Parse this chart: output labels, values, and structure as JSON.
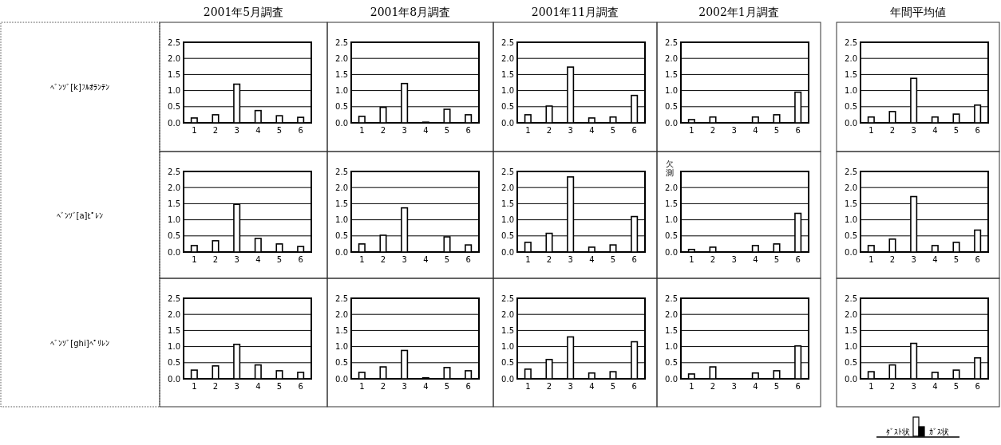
{
  "chart_data": [
    {
      "type": "bar",
      "title": "2001年5月調査",
      "ylabel": "ﾍﾞﾝｿﾞ[k]ﾌﾙｵﾗﾝﾃﾝ",
      "categories": [
        "1",
        "2",
        "3",
        "4",
        "5",
        "6"
      ],
      "series": [
        {
          "color": "#ffffff",
          "values": [
            0.15,
            0.25,
            1.2,
            0.38,
            0.22,
            0.17
          ]
        }
      ],
      "ylim": [
        0,
        2.5
      ],
      "yticks": [
        {
          "value": 0,
          "label": "0.0"
        },
        {
          "value": 0.5,
          "label": "0.5"
        },
        {
          "value": 1,
          "label": "1.0"
        },
        {
          "value": 1.5,
          "label": "1.5"
        },
        {
          "value": 2,
          "label": "2.0"
        },
        {
          "value": 2.5,
          "label": "2.5"
        }
      ],
      "grid": "y"
    },
    {
      "type": "bar",
      "title": "2001年8月調査",
      "categories": [
        "1",
        "2",
        "3",
        "4",
        "5",
        "6"
      ],
      "series": [
        {
          "color": "#ffffff",
          "values": [
            0.2,
            0.48,
            1.22,
            null,
            0.42,
            0.25
          ]
        },
        {
          "color": "#000000",
          "values": [
            null,
            null,
            null,
            0.02,
            null,
            null
          ]
        }
      ],
      "ylim": [
        0,
        2.5
      ],
      "yticks": [
        {
          "value": 0,
          "label": "0.0"
        },
        {
          "value": 0.5,
          "label": "0.5"
        },
        {
          "value": 1,
          "label": "1.0"
        },
        {
          "value": 1.5,
          "label": "1.5"
        },
        {
          "value": 2,
          "label": "2.0"
        },
        {
          "value": 2.5,
          "label": "2.5"
        }
      ],
      "grid": "y"
    },
    {
      "type": "bar",
      "title": "2001年11月調査",
      "categories": [
        "1",
        "2",
        "3",
        "4",
        "5",
        "6"
      ],
      "series": [
        {
          "color": "#ffffff",
          "values": [
            0.25,
            0.52,
            1.73,
            0.15,
            0.18,
            0.85
          ]
        }
      ],
      "ylim": [
        0,
        2.5
      ],
      "yticks": [
        {
          "value": 0,
          "label": "0.0"
        },
        {
          "value": 0.5,
          "label": "0.5"
        },
        {
          "value": 1,
          "label": "1.0"
        },
        {
          "value": 1.5,
          "label": "1.5"
        },
        {
          "value": 2,
          "label": "2.0"
        },
        {
          "value": 2.5,
          "label": "2.5"
        }
      ],
      "grid": "y"
    },
    {
      "type": "bar",
      "title": "2002年1月調査",
      "categories": [
        "1",
        "2",
        "3",
        "4",
        "5",
        "6"
      ],
      "series": [
        {
          "color": "#ffffff",
          "values": [
            0.1,
            0.18,
            null,
            0.18,
            0.25,
            0.95
          ]
        }
      ],
      "ylim": [
        0,
        2.5
      ],
      "yticks": [
        {
          "value": 0,
          "label": "0.0"
        },
        {
          "value": 0.5,
          "label": "0.5"
        },
        {
          "value": 1,
          "label": "1.0"
        },
        {
          "value": 1.5,
          "label": "1.5"
        },
        {
          "value": 2,
          "label": "2.0"
        },
        {
          "value": 2.5,
          "label": "2.5"
        }
      ],
      "grid": "y"
    },
    {
      "type": "bar",
      "title": "年間平均値",
      "categories": [
        "1",
        "2",
        "3",
        "4",
        "5",
        "6"
      ],
      "series": [
        {
          "color": "#ffffff",
          "values": [
            0.18,
            0.35,
            1.38,
            0.18,
            0.27,
            0.55
          ]
        }
      ],
      "ylim": [
        0,
        2.5
      ],
      "yticks": [
        {
          "value": 0,
          "label": "0.0"
        },
        {
          "value": 0.5,
          "label": "0.5"
        },
        {
          "value": 1,
          "label": "1.0"
        },
        {
          "value": 1.5,
          "label": "1.5"
        },
        {
          "value": 2,
          "label": "2.0"
        },
        {
          "value": 2.5,
          "label": "2.5"
        }
      ],
      "grid": "y"
    },
    {
      "type": "bar",
      "ylabel": "ﾍﾞﾝｿﾞ[a]ﾋﾟﾚﾝ",
      "categories": [
        "1",
        "2",
        "3",
        "4",
        "5",
        "6"
      ],
      "series": [
        {
          "color": "#ffffff",
          "values": [
            0.2,
            0.35,
            1.48,
            0.42,
            0.25,
            0.17
          ]
        }
      ],
      "ylim": [
        0,
        2.5
      ],
      "yticks": [
        {
          "value": 0,
          "label": "0.0"
        },
        {
          "value": 0.5,
          "label": "0.5"
        },
        {
          "value": 1,
          "label": "1.0"
        },
        {
          "value": 1.5,
          "label": "1.5"
        },
        {
          "value": 2,
          "label": "2.0"
        },
        {
          "value": 2.5,
          "label": "2.5"
        }
      ],
      "grid": "y"
    },
    {
      "type": "bar",
      "categories": [
        "1",
        "2",
        "3",
        "4",
        "5",
        "6"
      ],
      "series": [
        {
          "color": "#ffffff",
          "values": [
            0.25,
            0.52,
            1.37,
            null,
            0.47,
            0.22
          ]
        }
      ],
      "ylim": [
        0,
        2.5
      ],
      "yticks": [
        {
          "value": 0,
          "label": "0.0"
        },
        {
          "value": 0.5,
          "label": "0.5"
        },
        {
          "value": 1,
          "label": "1.0"
        },
        {
          "value": 1.5,
          "label": "1.5"
        },
        {
          "value": 2,
          "label": "2.0"
        },
        {
          "value": 2.5,
          "label": "2.5"
        }
      ],
      "grid": "y"
    },
    {
      "type": "bar",
      "categories": [
        "1",
        "2",
        "3",
        "4",
        "5",
        "6"
      ],
      "series": [
        {
          "color": "#ffffff",
          "values": [
            0.3,
            0.58,
            2.33,
            0.15,
            0.22,
            1.1
          ]
        }
      ],
      "ylim": [
        0,
        2.5
      ],
      "yticks": [
        {
          "value": 0,
          "label": "0.0"
        },
        {
          "value": 0.5,
          "label": "0.5"
        },
        {
          "value": 1,
          "label": "1.0"
        },
        {
          "value": 1.5,
          "label": "1.5"
        },
        {
          "value": 2,
          "label": "2.0"
        },
        {
          "value": 2.5,
          "label": "2.5"
        }
      ],
      "grid": "y"
    },
    {
      "type": "bar",
      "categories": [
        "1",
        "2",
        "3",
        "4",
        "5",
        "6"
      ],
      "series": [
        {
          "color": "#ffffff",
          "values": [
            0.08,
            0.15,
            null,
            0.2,
            0.25,
            1.2
          ]
        }
      ],
      "ylim": [
        0,
        2.5
      ],
      "yticks": [
        {
          "value": 0,
          "label": "0.0"
        },
        {
          "value": 0.5,
          "label": "0.5"
        },
        {
          "value": 1,
          "label": "1.0"
        },
        {
          "value": 1.5,
          "label": "1.5"
        },
        {
          "value": 2,
          "label": "2.0"
        },
        {
          "value": 2.5,
          "label": null
        }
      ],
      "grid": "y",
      "annotations": [
        "欠測"
      ]
    },
    {
      "type": "bar",
      "categories": [
        "1",
        "2",
        "3",
        "4",
        "5",
        "6"
      ],
      "series": [
        {
          "color": "#ffffff",
          "values": [
            0.2,
            0.4,
            1.72,
            0.2,
            0.3,
            0.68
          ]
        }
      ],
      "ylim": [
        0,
        2.5
      ],
      "yticks": [
        {
          "value": 0,
          "label": "0.0"
        },
        {
          "value": 0.5,
          "label": "0.5"
        },
        {
          "value": 1,
          "label": "1.0"
        },
        {
          "value": 1.5,
          "label": "1.5"
        },
        {
          "value": 2,
          "label": "2.0"
        },
        {
          "value": 2.5,
          "label": "2.5"
        }
      ],
      "grid": "y"
    },
    {
      "type": "bar",
      "ylabel": "ﾍﾞﾝｿﾞ[ghi]ﾍﾟﾘﾚﾝ",
      "categories": [
        "1",
        "2",
        "3",
        "4",
        "5",
        "6"
      ],
      "series": [
        {
          "color": "#ffffff",
          "values": [
            0.27,
            0.4,
            1.07,
            0.43,
            0.25,
            0.2
          ]
        }
      ],
      "ylim": [
        0,
        2.5
      ],
      "yticks": [
        {
          "value": 0,
          "label": "0.0"
        },
        {
          "value": 0.5,
          "label": "0.5"
        },
        {
          "value": 1,
          "label": "1.0"
        },
        {
          "value": 1.5,
          "label": "1.5"
        },
        {
          "value": 2,
          "label": "2.0"
        },
        {
          "value": 2.5,
          "label": "2.5"
        }
      ],
      "grid": "y"
    },
    {
      "type": "bar",
      "categories": [
        "1",
        "2",
        "3",
        "4",
        "5",
        "6"
      ],
      "series": [
        {
          "color": "#ffffff",
          "values": [
            0.2,
            0.37,
            0.88,
            null,
            0.35,
            0.25
          ]
        },
        {
          "color": "#000000",
          "values": [
            null,
            null,
            null,
            0.03,
            null,
            null
          ]
        }
      ],
      "ylim": [
        0,
        2.5
      ],
      "yticks": [
        {
          "value": 0,
          "label": "0.0"
        },
        {
          "value": 0.5,
          "label": "0.5"
        },
        {
          "value": 1,
          "label": "1.0"
        },
        {
          "value": 1.5,
          "label": "1.5"
        },
        {
          "value": 2,
          "label": "2.0"
        },
        {
          "value": 2.5,
          "label": "2.5"
        }
      ],
      "grid": "y"
    },
    {
      "type": "bar",
      "categories": [
        "1",
        "2",
        "3",
        "4",
        "5",
        "6"
      ],
      "series": [
        {
          "color": "#ffffff",
          "values": [
            0.3,
            0.6,
            1.3,
            0.18,
            0.22,
            1.15
          ]
        }
      ],
      "ylim": [
        0,
        2.5
      ],
      "yticks": [
        {
          "value": 0,
          "label": "0.0"
        },
        {
          "value": 0.5,
          "label": "0.5"
        },
        {
          "value": 1,
          "label": "1.0"
        },
        {
          "value": 1.5,
          "label": "1.5"
        },
        {
          "value": 2,
          "label": "2.0"
        },
        {
          "value": 2.5,
          "label": "2.5"
        }
      ],
      "grid": "y"
    },
    {
      "type": "bar",
      "categories": [
        "1",
        "2",
        "3",
        "4",
        "5",
        "6"
      ],
      "series": [
        {
          "color": "#ffffff",
          "values": [
            0.15,
            0.37,
            null,
            0.18,
            0.25,
            1.02
          ]
        }
      ],
      "ylim": [
        0,
        2.5
      ],
      "yticks": [
        {
          "value": 0,
          "label": "0.0"
        },
        {
          "value": 0.5,
          "label": "0.5"
        },
        {
          "value": 1,
          "label": "1.0"
        },
        {
          "value": 1.5,
          "label": "1.5"
        },
        {
          "value": 2,
          "label": "2.0"
        },
        {
          "value": 2.5,
          "label": "2.5"
        }
      ],
      "grid": "y"
    },
    {
      "type": "bar",
      "categories": [
        "1",
        "2",
        "3",
        "4",
        "5",
        "6"
      ],
      "series": [
        {
          "name": "ﾀﾞｽﾄ状",
          "color": "#ffffff",
          "values": [
            0.22,
            0.43,
            1.1,
            0.2,
            0.27,
            0.65
          ]
        },
        {
          "name": "ｶﾞｽ状",
          "color": "#000000",
          "values": [
            null,
            null,
            null,
            null,
            null,
            null
          ]
        }
      ],
      "ylim": [
        0,
        2.5
      ],
      "yticks": [
        {
          "value": 0,
          "label": "0.0"
        },
        {
          "value": 0.5,
          "label": "0.5"
        },
        {
          "value": 1,
          "label": "1.0"
        },
        {
          "value": 1.5,
          "label": "1.5"
        },
        {
          "value": 2,
          "label": "2.0"
        },
        {
          "value": 2.5,
          "label": "2.5"
        }
      ],
      "grid": "y",
      "legend": "bottom"
    }
  ]
}
